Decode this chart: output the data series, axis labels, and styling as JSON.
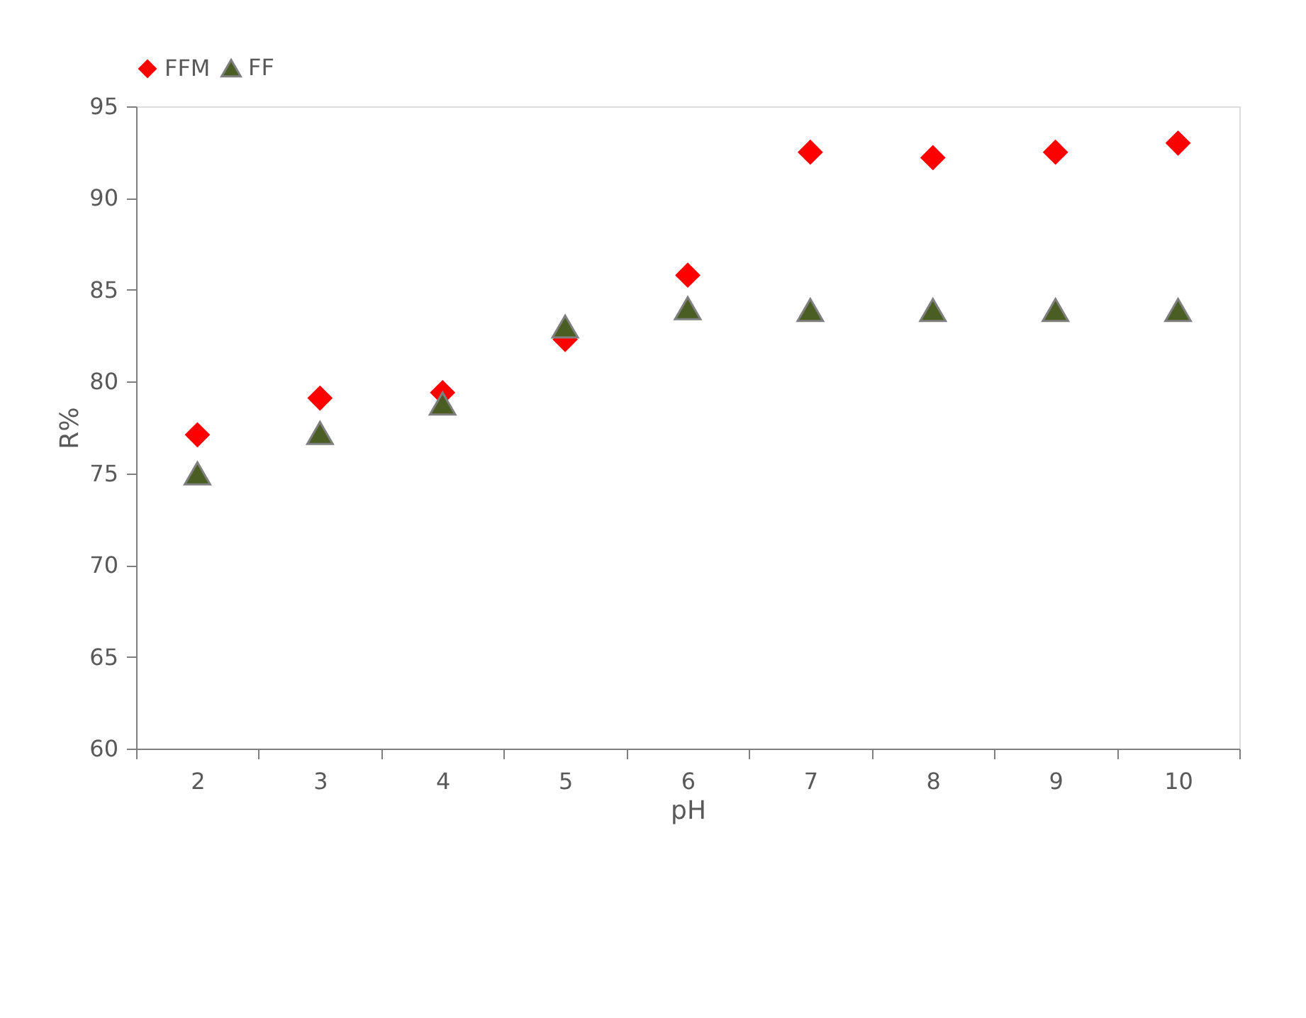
{
  "chart_data": {
    "type": "scatter",
    "xlabel": "pH",
    "ylabel": "R%",
    "categories": [
      "2",
      "3",
      "4",
      "5",
      "6",
      "7",
      "8",
      "9",
      "10"
    ],
    "series": [
      {
        "name": "FFM",
        "color": "#ff0000",
        "marker": "diamond",
        "values": [
          77.1,
          79.1,
          79.4,
          82.3,
          85.8,
          92.5,
          92.2,
          92.5,
          93.0
        ]
      },
      {
        "name": "FF",
        "color": "#4a5e23",
        "marker": "triangle",
        "values": [
          75.0,
          77.2,
          78.8,
          83.0,
          84.0,
          83.9,
          83.9,
          83.9,
          83.9
        ]
      }
    ],
    "ylim": [
      60,
      95
    ],
    "yticks": [
      60,
      65,
      70,
      75,
      80,
      85,
      90,
      95
    ],
    "grid": false,
    "legend": "top"
  }
}
